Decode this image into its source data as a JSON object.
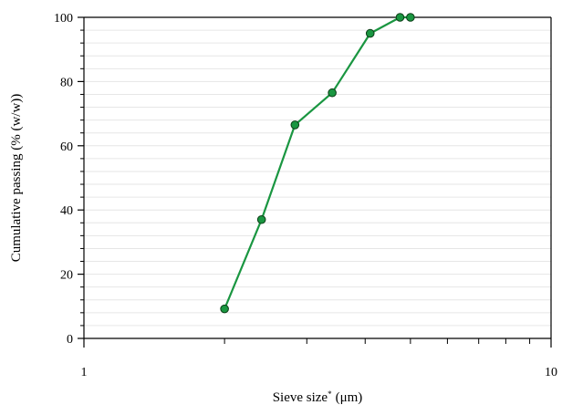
{
  "chart_data": {
    "type": "line",
    "xlabel": "Sieve size",
    "xlabel_sup": "*",
    "xlabel_unit": "(μm)",
    "ylabel": "Cumulative passing (% (w/w))",
    "x_scale": "log",
    "xlim": [
      1,
      10
    ],
    "ylim": [
      0,
      100
    ],
    "x_ticks": [
      1,
      10
    ],
    "y_ticks": [
      0,
      20,
      40,
      60,
      80,
      100
    ],
    "y_minor_step": 4,
    "grid": "horizontal",
    "colors": {
      "line": "#1a9641",
      "marker_fill": "#1a9641",
      "marker_edge": "#0b3d16",
      "grid": "#e6e6e6"
    },
    "series": [
      {
        "x": [
          2.0,
          2.4,
          2.83,
          3.4,
          4.1,
          4.75,
          5.0
        ],
        "y": [
          9.2,
          37,
          66.5,
          76.5,
          95,
          100,
          100
        ]
      }
    ]
  }
}
